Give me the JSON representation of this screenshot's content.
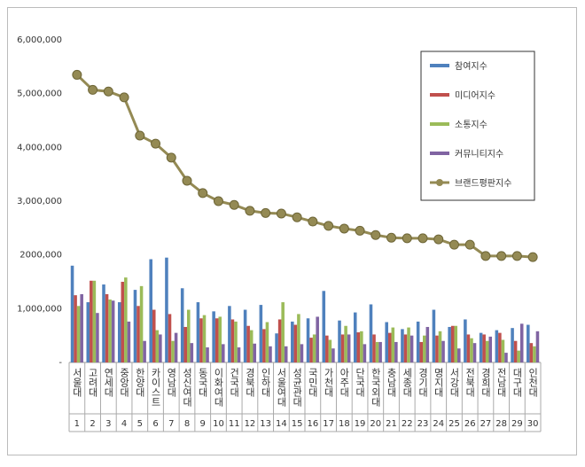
{
  "chart_data": {
    "type": "bar",
    "categories": [
      "서울대",
      "고려대",
      "연세대",
      "중앙대",
      "한양대",
      "카이스트",
      "영남대",
      "성신여대",
      "동국대",
      "이화여대",
      "건국대",
      "경북대",
      "인하대",
      "서울여대",
      "성균관대",
      "국민대",
      "가천대",
      "아주대",
      "단국대",
      "한국외대",
      "충남대",
      "세종대",
      "경기대",
      "명지대",
      "서강대",
      "전북대",
      "경희대",
      "전남대",
      "대구대",
      "인천대"
    ],
    "ranks": [
      1,
      2,
      3,
      4,
      5,
      6,
      7,
      8,
      9,
      10,
      11,
      12,
      13,
      14,
      15,
      16,
      17,
      18,
      19,
      20,
      21,
      22,
      23,
      24,
      25,
      26,
      27,
      28,
      29,
      30
    ],
    "ylim": [
      0,
      6000000
    ],
    "yticks": [
      {
        "value": 0,
        "label": "-"
      },
      {
        "value": 1000000,
        "label": "1,000,000"
      },
      {
        "value": 2000000,
        "label": "2000,000"
      },
      {
        "value": 3000000,
        "label": "3,000,000"
      },
      {
        "value": 4000000,
        "label": "4,000,000"
      },
      {
        "value": 5000000,
        "label": "5,000,000"
      },
      {
        "value": 6000000,
        "label": "6,000,000"
      }
    ],
    "series": [
      {
        "name": "참여지수",
        "color": "#4f81bd",
        "values": [
          1800000,
          1120000,
          1450000,
          1120000,
          1350000,
          1920000,
          1950000,
          1380000,
          1120000,
          950000,
          1050000,
          980000,
          1070000,
          540000,
          760000,
          820000,
          1330000,
          780000,
          930000,
          1080000,
          750000,
          620000,
          760000,
          980000,
          660000,
          800000,
          550000,
          600000,
          640000,
          700000
        ]
      },
      {
        "name": "미디어지수",
        "color": "#c0504d",
        "values": [
          1250000,
          1520000,
          1270000,
          1500000,
          1050000,
          980000,
          900000,
          660000,
          820000,
          820000,
          800000,
          680000,
          620000,
          800000,
          700000,
          460000,
          500000,
          520000,
          560000,
          520000,
          550000,
          520000,
          380000,
          500000,
          680000,
          520000,
          520000,
          550000,
          400000,
          360000
        ]
      },
      {
        "name": "소통지수",
        "color": "#9bbb59",
        "values": [
          1050000,
          1520000,
          1170000,
          1580000,
          1420000,
          600000,
          400000,
          980000,
          880000,
          850000,
          760000,
          600000,
          750000,
          1120000,
          900000,
          520000,
          420000,
          680000,
          580000,
          380000,
          650000,
          650000,
          500000,
          580000,
          680000,
          450000,
          400000,
          420000,
          220000,
          300000
        ]
      },
      {
        "name": "커뮤니티지수",
        "color": "#8064a2",
        "values": [
          1270000,
          920000,
          1150000,
          760000,
          400000,
          520000,
          550000,
          360000,
          280000,
          340000,
          280000,
          350000,
          300000,
          300000,
          340000,
          850000,
          260000,
          520000,
          340000,
          380000,
          380000,
          500000,
          660000,
          400000,
          260000,
          360000,
          480000,
          180000,
          720000,
          580000
        ]
      },
      {
        "name": "브랜드평판지수",
        "color": "#948a54",
        "type": "line",
        "values": [
          5350000,
          5070000,
          5040000,
          4930000,
          4220000,
          4070000,
          3810000,
          3380000,
          3150000,
          3000000,
          2930000,
          2820000,
          2780000,
          2770000,
          2700000,
          2620000,
          2540000,
          2490000,
          2450000,
          2370000,
          2320000,
          2310000,
          2310000,
          2290000,
          2190000,
          2190000,
          1980000,
          1980000,
          1980000,
          1960000
        ]
      }
    ],
    "legend": "upper right"
  }
}
